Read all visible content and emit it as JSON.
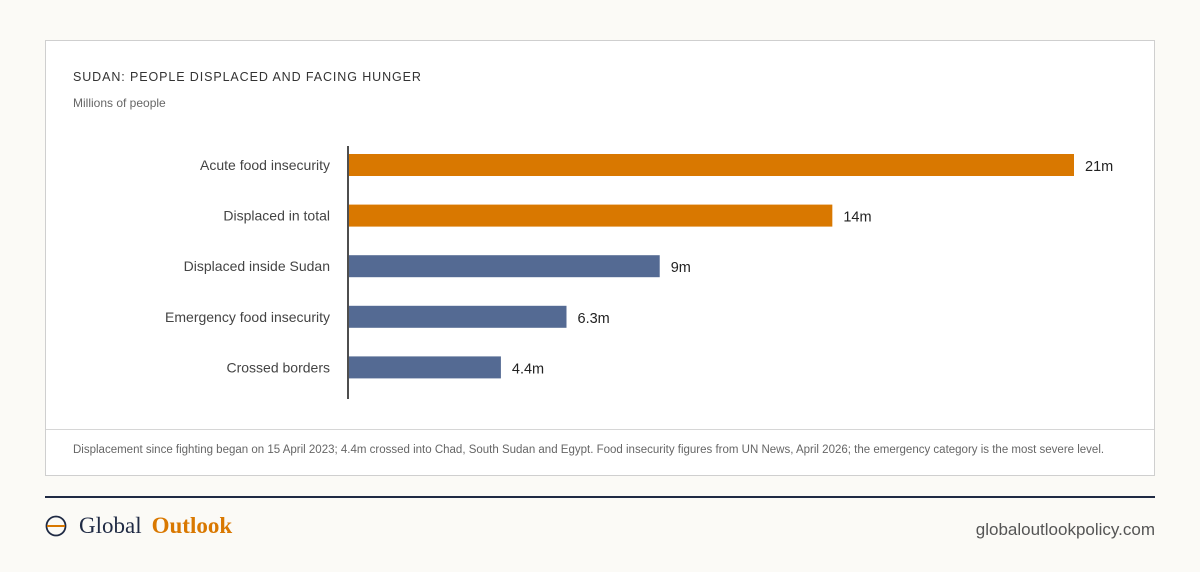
{
  "chart_data": {
    "type": "bar",
    "orientation": "horizontal",
    "title": "SUDAN: PEOPLE DISPLACED AND FACING HUNGER",
    "subtitle": "Millions of people",
    "categories": [
      "Acute food insecurity",
      "Displaced in total",
      "Displaced inside Sudan",
      "Emergency food insecurity",
      "Crossed borders"
    ],
    "values": [
      21,
      14,
      9,
      6.3,
      4.4
    ],
    "value_labels": [
      "21m",
      "14m",
      "9m",
      "6.3m",
      "4.4m"
    ],
    "highlighted": [
      true,
      true,
      false,
      false,
      false
    ],
    "colors": {
      "highlight": "#d97800",
      "default": "#546a93"
    },
    "xlim": [
      0,
      21
    ],
    "grid": false,
    "legend": "none"
  },
  "note": "Displacement since fighting began on 15 April 2023; 4.4m crossed into Chad, South Sudan and Egypt. Food insecurity figures from UN News, April 2026; the emergency category is the most severe level.",
  "footer": {
    "brand_part1": "Global",
    "brand_part2": "Outlook",
    "website": "globaloutlookpolicy.com",
    "brand_icon": "globe-icon"
  }
}
